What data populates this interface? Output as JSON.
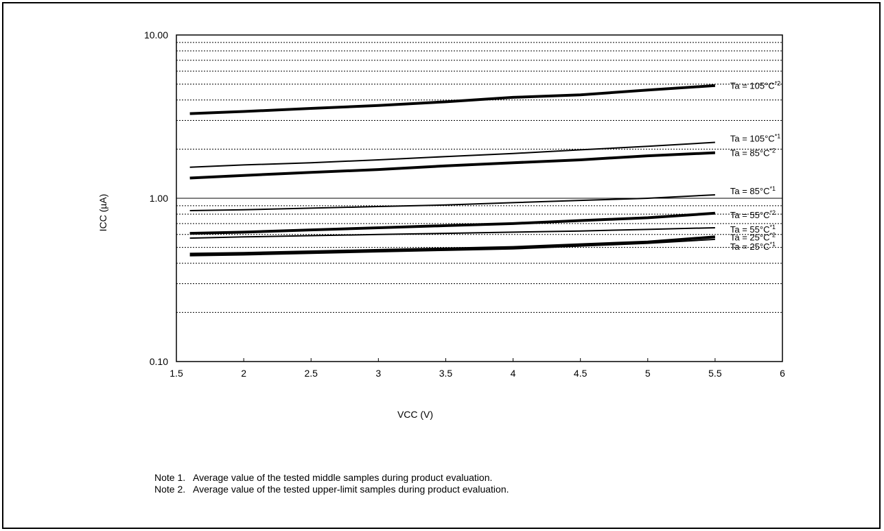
{
  "chart_data": {
    "type": "line",
    "xlabel": "VCC (V)",
    "ylabel": "ICC (µA)",
    "xlim": [
      1.5,
      6
    ],
    "ylim": [
      0.1,
      10
    ],
    "y_scale": "log",
    "x_ticks": [
      "1.5",
      "2",
      "2.5",
      "3",
      "3.5",
      "4",
      "4.5",
      "5",
      "5.5",
      "6"
    ],
    "y_ticks": [
      {
        "value": 10,
        "label": "10.00"
      },
      {
        "value": 1,
        "label": "1.00"
      },
      {
        "value": 0.1,
        "label": "0.10"
      }
    ],
    "grid": "horizontal dotted minor lines at log decades",
    "series": [
      {
        "name": "Ta = 105°C",
        "note": "*2",
        "weight": "bold",
        "x": [
          1.6,
          2.0,
          2.5,
          3.0,
          3.5,
          4.0,
          4.5,
          5.0,
          5.5
        ],
        "y": [
          3.3,
          3.4,
          3.55,
          3.7,
          3.9,
          4.15,
          4.3,
          4.6,
          4.9
        ]
      },
      {
        "name": "Ta = 105°C",
        "note": "*1",
        "weight": "thin",
        "x": [
          1.6,
          2.0,
          2.5,
          3.0,
          3.5,
          4.0,
          4.5,
          5.0,
          5.5
        ],
        "y": [
          1.55,
          1.6,
          1.65,
          1.72,
          1.8,
          1.88,
          1.98,
          2.08,
          2.2
        ]
      },
      {
        "name": "Ta = 85°C",
        "note": "*2",
        "weight": "bold",
        "x": [
          1.6,
          2.0,
          2.5,
          3.0,
          3.5,
          4.0,
          4.5,
          5.0,
          5.5
        ],
        "y": [
          1.33,
          1.38,
          1.44,
          1.5,
          1.58,
          1.65,
          1.72,
          1.82,
          1.9
        ]
      },
      {
        "name": "Ta = 85°C",
        "note": "*1",
        "weight": "thin",
        "x": [
          1.6,
          2.0,
          2.5,
          3.0,
          3.5,
          4.0,
          4.5,
          5.0,
          5.5
        ],
        "y": [
          0.84,
          0.85,
          0.87,
          0.89,
          0.91,
          0.94,
          0.97,
          1.0,
          1.05
        ]
      },
      {
        "name": "Ta = 55°C",
        "note": "*2",
        "weight": "bold",
        "x": [
          1.6,
          2.0,
          2.5,
          3.0,
          3.5,
          4.0,
          4.5,
          5.0,
          5.5
        ],
        "y": [
          0.61,
          0.62,
          0.64,
          0.66,
          0.68,
          0.7,
          0.73,
          0.76,
          0.81
        ]
      },
      {
        "name": "Ta = 55°C",
        "note": "*1",
        "weight": "thin",
        "x": [
          1.6,
          2.0,
          2.5,
          3.0,
          3.5,
          4.0,
          4.5,
          5.0,
          5.5
        ],
        "y": [
          0.57,
          0.58,
          0.59,
          0.6,
          0.61,
          0.62,
          0.63,
          0.645,
          0.66
        ]
      },
      {
        "name": "Ta = 25°C",
        "note": "*2",
        "weight": "bold",
        "x": [
          1.6,
          2.0,
          2.5,
          3.0,
          3.5,
          4.0,
          4.5,
          5.0,
          5.5
        ],
        "y": [
          0.455,
          0.46,
          0.47,
          0.48,
          0.49,
          0.5,
          0.52,
          0.54,
          0.58
        ]
      },
      {
        "name": "Ta = 25°C",
        "note": "*1",
        "weight": "thin",
        "x": [
          1.6,
          2.0,
          2.5,
          3.0,
          3.5,
          4.0,
          4.5,
          5.0,
          5.5
        ],
        "y": [
          0.445,
          0.45,
          0.46,
          0.47,
          0.48,
          0.49,
          0.51,
          0.53,
          0.56
        ]
      }
    ]
  },
  "notes": {
    "note1": "Note 1.   Average value of the tested middle samples during product evaluation.",
    "note2": "Note 2.   Average value of the tested upper-limit samples during product evaluation."
  }
}
